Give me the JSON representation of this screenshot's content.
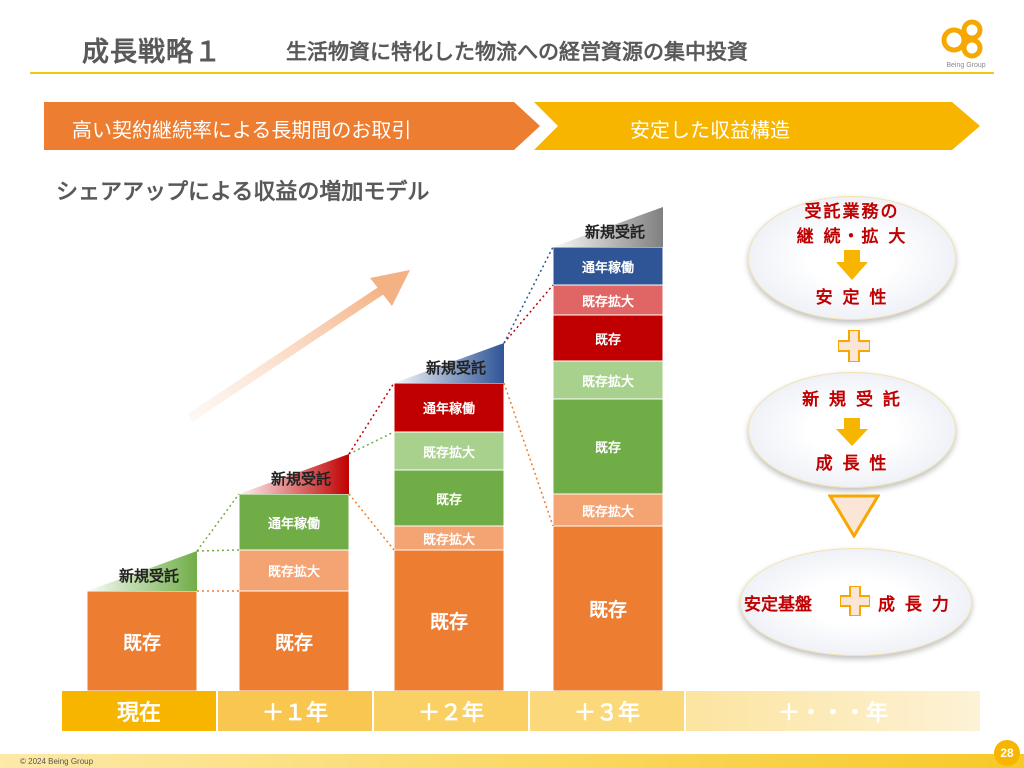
{
  "header": {
    "title": "成長戦略１",
    "subtitle": "生活物資に特化した物流への経営資源の集中投資",
    "logo_text": "Being Group"
  },
  "banner": {
    "left": "高い契約継続率による長期間のお取引",
    "right": "安定した収益構造"
  },
  "model_title": "シェアアップによる収益の増加モデル",
  "chart_data": {
    "type": "bar",
    "categories": [
      "現在",
      "＋１年",
      "＋２年",
      "＋３年",
      "＋・・・年"
    ],
    "new_label": "新規受託",
    "stacks": [
      {
        "segments": [
          {
            "label": "既存",
            "value": 100,
            "color": "#ed7d31"
          }
        ]
      },
      {
        "segments": [
          {
            "label": "既存",
            "value": 100,
            "color": "#ed7d31"
          },
          {
            "label": "既存拡大",
            "value": 41,
            "color": "#f4a373"
          },
          {
            "label": "通年稼働",
            "value": 56,
            "color": "#70ad47"
          }
        ]
      },
      {
        "segments": [
          {
            "label": "既存",
            "value": 141,
            "color": "#ed7d31"
          },
          {
            "label": "既存拡大",
            "value": 24,
            "color": "#f4a373"
          },
          {
            "label": "既存",
            "value": 56,
            "color": "#70ad47"
          },
          {
            "label": "既存拡大",
            "value": 38,
            "color": "#a9d18e"
          },
          {
            "label": "通年稼働",
            "value": 49,
            "color": "#c00000"
          }
        ]
      },
      {
        "segments": [
          {
            "label": "既存",
            "value": 165,
            "color": "#ed7d31"
          },
          {
            "label": "既存拡大",
            "value": 32,
            "color": "#f4a373"
          },
          {
            "label": "既存",
            "value": 95,
            "color": "#70ad47"
          },
          {
            "label": "既存拡大",
            "value": 38,
            "color": "#a9d18e"
          },
          {
            "label": "既存",
            "value": 46,
            "color": "#c00000"
          },
          {
            "label": "既存拡大",
            "value": 30,
            "color": "#e06666"
          },
          {
            "label": "通年稼働",
            "value": 38,
            "color": "#2f5597"
          }
        ]
      }
    ]
  },
  "right_panel": {
    "oval1_top": "受託業務の",
    "oval1_mid": "継 続・拡 大",
    "oval1_bottom": "安 定 性",
    "oval2_top": "新 規 受 託",
    "oval2_bottom": "成 長 性",
    "oval3_left": "安定基盤",
    "oval3_right": "成 長 力"
  },
  "footer": {
    "copyright": "© 2024 Being Group",
    "page": "28"
  }
}
